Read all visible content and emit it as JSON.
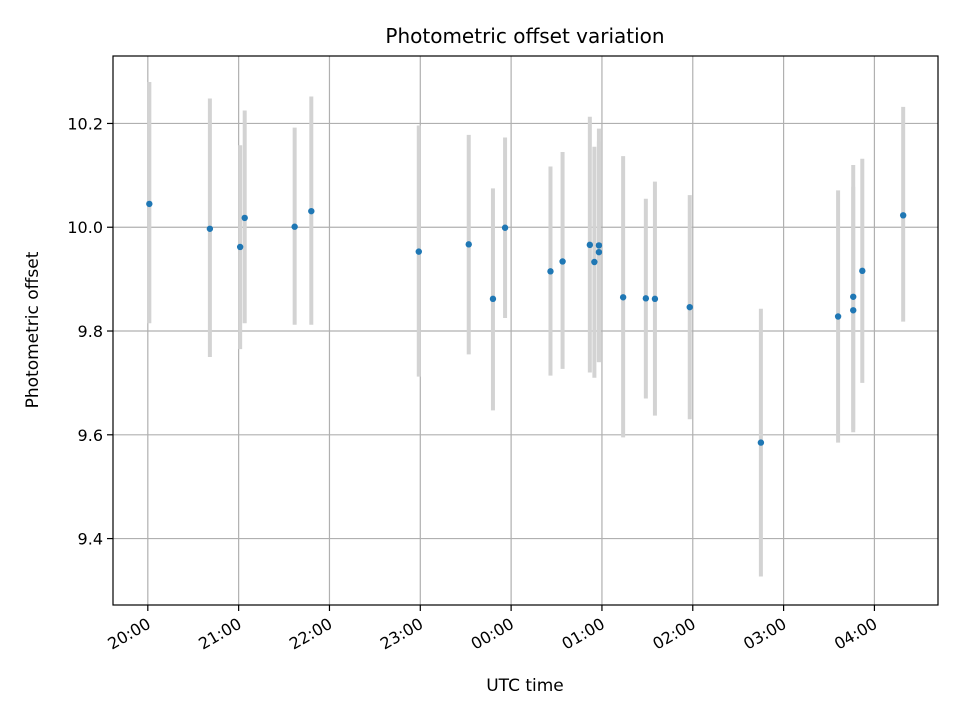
{
  "chart_data": {
    "type": "scatter",
    "title": "Photometric offset variation",
    "xlabel": "UTC time",
    "ylabel": "Photometric offset",
    "x_unit": "hours",
    "xlim": [
      "19:37",
      "04:42"
    ],
    "ylim": [
      9.272,
      10.33
    ],
    "x_ticks": [
      "20:00",
      "21:00",
      "22:00",
      "23:00",
      "00:00",
      "01:00",
      "02:00",
      "03:00",
      "04:00"
    ],
    "y_ticks": [
      "9.4",
      "9.6",
      "9.8",
      "10.0",
      "10.2"
    ],
    "y_tick_values": [
      9.4,
      9.6,
      9.8,
      10.0,
      10.2
    ],
    "grid": true,
    "marker_color": "#1f77b4",
    "errorbar_color": "#d3d3d3",
    "points": [
      {
        "t": "20:01",
        "y": 10.045,
        "lo": 9.815,
        "hi": 10.28
      },
      {
        "t": "20:41",
        "y": 9.997,
        "lo": 9.75,
        "hi": 10.248
      },
      {
        "t": "21:01",
        "y": 9.962,
        "lo": 9.765,
        "hi": 10.158
      },
      {
        "t": "21:04",
        "y": 10.018,
        "lo": 9.815,
        "hi": 10.225
      },
      {
        "t": "21:37",
        "y": 10.001,
        "lo": 9.812,
        "hi": 10.192
      },
      {
        "t": "21:48",
        "y": 10.031,
        "lo": 9.812,
        "hi": 10.252
      },
      {
        "t": "22:59",
        "y": 9.953,
        "lo": 9.712,
        "hi": 10.196
      },
      {
        "t": "23:32",
        "y": 9.967,
        "lo": 9.755,
        "hi": 10.178
      },
      {
        "t": "23:48",
        "y": 9.862,
        "lo": 9.647,
        "hi": 10.075
      },
      {
        "t": "23:56",
        "y": 9.999,
        "lo": 9.825,
        "hi": 10.173
      },
      {
        "t": "00:26",
        "y": 9.915,
        "lo": 9.714,
        "hi": 10.117
      },
      {
        "t": "00:34",
        "y": 9.934,
        "lo": 9.727,
        "hi": 10.145
      },
      {
        "t": "00:52",
        "y": 9.966,
        "lo": 9.72,
        "hi": 10.213
      },
      {
        "t": "00:55",
        "y": 9.933,
        "lo": 9.71,
        "hi": 10.155
      },
      {
        "t": "00:58",
        "y": 9.965,
        "lo": 9.74,
        "hi": 10.19
      },
      {
        "t": "00:58",
        "y": 9.952,
        "lo": 9.74,
        "hi": 10.165
      },
      {
        "t": "01:14",
        "y": 9.865,
        "lo": 9.595,
        "hi": 10.137
      },
      {
        "t": "01:29",
        "y": 9.863,
        "lo": 9.67,
        "hi": 10.055
      },
      {
        "t": "01:35",
        "y": 9.862,
        "lo": 9.637,
        "hi": 10.088
      },
      {
        "t": "01:58",
        "y": 9.846,
        "lo": 9.63,
        "hi": 10.062
      },
      {
        "t": "02:45",
        "y": 9.585,
        "lo": 9.327,
        "hi": 9.843
      },
      {
        "t": "03:36",
        "y": 9.828,
        "lo": 9.585,
        "hi": 10.071
      },
      {
        "t": "03:46",
        "y": 9.866,
        "lo": 9.605,
        "hi": 10.12
      },
      {
        "t": "03:46",
        "y": 9.84,
        "lo": 9.61,
        "hi": 10.078
      },
      {
        "t": "03:52",
        "y": 9.916,
        "lo": 9.7,
        "hi": 10.132
      },
      {
        "t": "04:19",
        "y": 10.023,
        "lo": 9.818,
        "hi": 10.232
      }
    ]
  }
}
